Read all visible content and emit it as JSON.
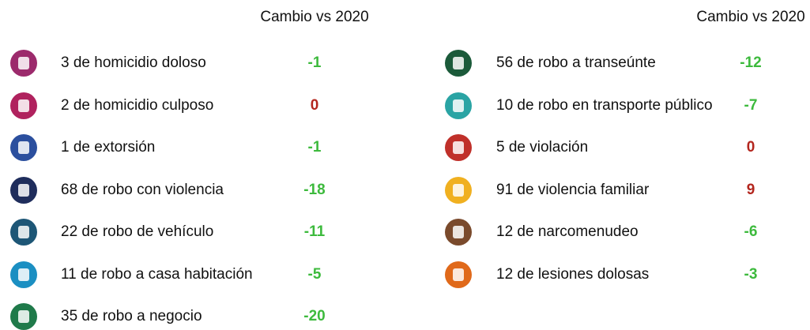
{
  "columns": [
    {
      "header": "Cambio vs 2020",
      "items": [
        {
          "text": "3 de homicidio doloso",
          "change": "-1",
          "change_color": "#3dba3d",
          "icon_color": "#9c2a6c"
        },
        {
          "text": "2 de homicidio culposo",
          "change": "0",
          "change_color": "#b3261e",
          "icon_color": "#b0225e"
        },
        {
          "text": "1 de extorsión",
          "change": "-1",
          "change_color": "#3dba3d",
          "icon_color": "#2b4f9e"
        },
        {
          "text": "68 de robo con violencia",
          "change": "-18",
          "change_color": "#3dba3d",
          "icon_color": "#1f2d5c"
        },
        {
          "text": "22 de robo de vehículo",
          "change": "-11",
          "change_color": "#3dba3d",
          "icon_color": "#1d5676"
        },
        {
          "text": "11 de robo a casa habitación",
          "change": "-5",
          "change_color": "#3dba3d",
          "icon_color": "#1b8fc2"
        },
        {
          "text": "35 de robo a negocio",
          "change": "-20",
          "change_color": "#3dba3d",
          "icon_color": "#1f7a4a"
        }
      ]
    },
    {
      "header": "Cambio vs 2020",
      "items": [
        {
          "text": "56 de robo a transeúnte",
          "change": "-12",
          "change_color": "#3dba3d",
          "icon_color": "#1b5a3a"
        },
        {
          "text": "10 de robo en transporte público",
          "change": "-7",
          "change_color": "#3dba3d",
          "icon_color": "#2aa4a4"
        },
        {
          "text": "5 de violación",
          "change": "0",
          "change_color": "#b3261e",
          "icon_color": "#c0302a"
        },
        {
          "text": "91 de violencia familiar",
          "change": "9",
          "change_color": "#b3261e",
          "icon_color": "#f0b020"
        },
        {
          "text": "12 de narcomenudeo",
          "change": "-6",
          "change_color": "#3dba3d",
          "icon_color": "#7a4a2c"
        },
        {
          "text": "12 de lesiones dolosas",
          "change": "-3",
          "change_color": "#3dba3d",
          "icon_color": "#e0691a"
        }
      ]
    }
  ]
}
